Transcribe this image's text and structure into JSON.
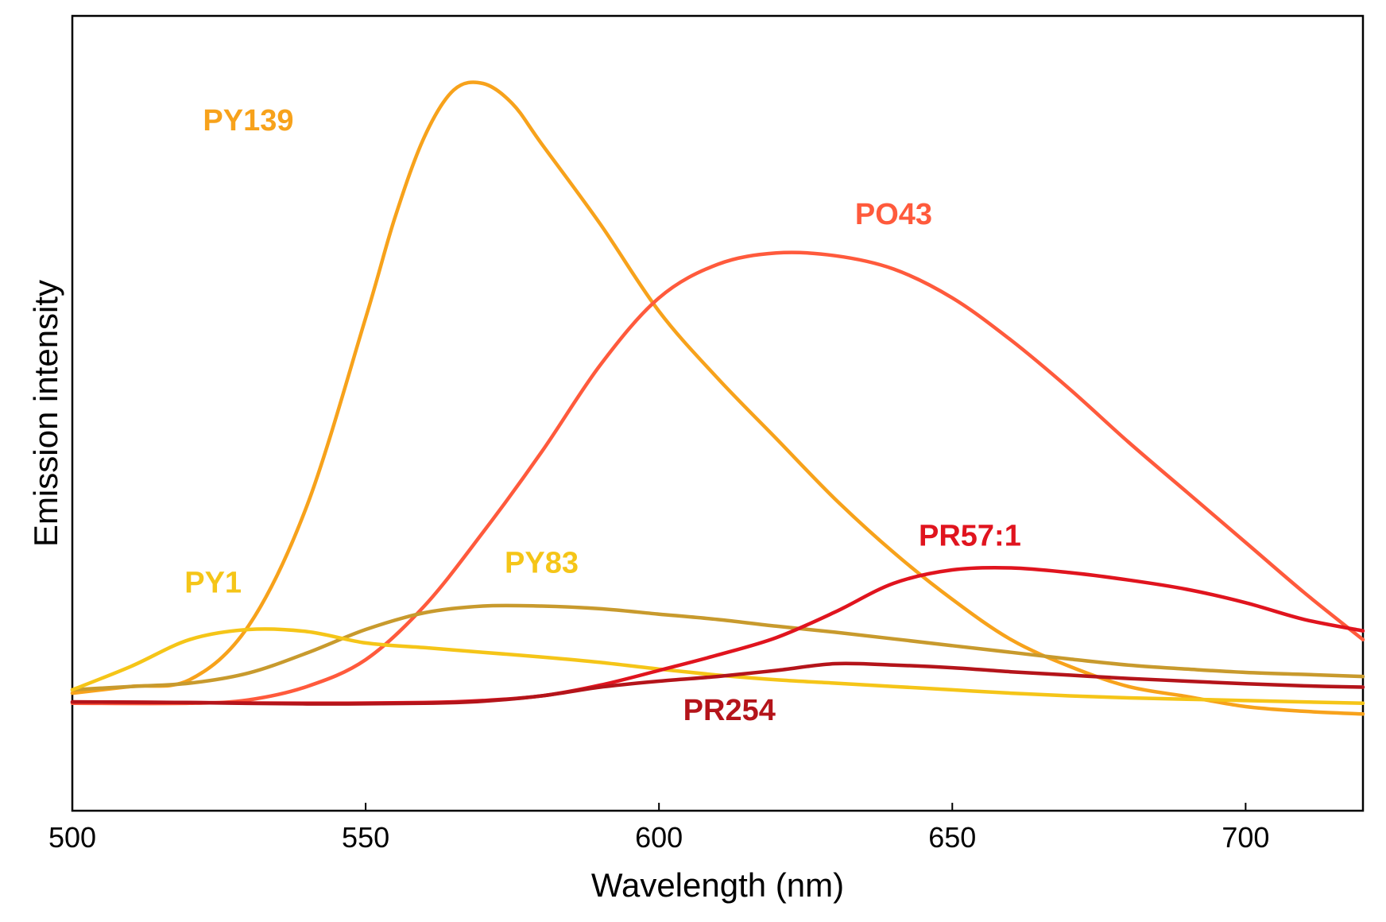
{
  "chart_data": {
    "type": "line",
    "title": "",
    "xlabel": "Wavelength (nm)",
    "ylabel": "Emission intensity",
    "xlim": [
      500,
      720
    ],
    "ylim": [
      0,
      100
    ],
    "xticks": [
      500,
      550,
      600,
      650,
      700
    ],
    "yticks": [],
    "grid": false,
    "legend": "none",
    "series": [
      {
        "name": "PY139",
        "color": "#f7a21b",
        "x": [
          500,
          510,
          520,
          530,
          540,
          550,
          555,
          560,
          565,
          570,
          575,
          580,
          590,
          600,
          610,
          620,
          630,
          640,
          650,
          660,
          670,
          680,
          690,
          700,
          710,
          720
        ],
        "y": [
          9,
          10,
          11,
          19,
          37,
          65,
          80,
          92,
          99,
          100,
          97,
          91,
          79,
          66,
          56,
          47,
          38,
          30,
          23,
          17,
          13,
          10,
          8.5,
          7,
          6.3,
          5.9
        ]
      },
      {
        "name": "PO43",
        "color": "#ff5a3c",
        "x": [
          500,
          520,
          530,
          540,
          550,
          560,
          570,
          580,
          590,
          600,
          610,
          620,
          630,
          640,
          650,
          660,
          670,
          680,
          690,
          700,
          710,
          720
        ],
        "y": [
          7.5,
          7.5,
          8,
          10,
          14,
          22,
          33,
          45,
          58,
          68,
          73,
          74.7,
          74.3,
          72.3,
          68,
          61.7,
          54.4,
          46.5,
          39,
          31.5,
          24,
          17
        ]
      },
      {
        "name": "PY83",
        "color": "#c89a2d",
        "x": [
          500,
          510,
          520,
          530,
          540,
          550,
          560,
          570,
          580,
          590,
          600,
          610,
          620,
          630,
          640,
          650,
          660,
          670,
          680,
          690,
          700,
          710,
          720
        ],
        "y": [
          9.5,
          10,
          10.5,
          12,
          15,
          18.5,
          21,
          22,
          22,
          21.6,
          20.8,
          20,
          19,
          18.1,
          17.1,
          16.1,
          15.1,
          14.1,
          13.2,
          12.6,
          12.1,
          11.8,
          11.5
        ]
      },
      {
        "name": "PY1",
        "color": "#f5c518",
        "x": [
          500,
          510,
          520,
          530,
          540,
          550,
          560,
          570,
          580,
          590,
          600,
          610,
          620,
          630,
          640,
          650,
          660,
          670,
          680,
          690,
          700,
          710,
          720
        ],
        "y": [
          9.5,
          13,
          17,
          18.5,
          18.2,
          16.5,
          15.8,
          15.1,
          14.4,
          13.6,
          12.6,
          11.7,
          11,
          10.5,
          10,
          9.5,
          9,
          8.6,
          8.3,
          8.1,
          7.9,
          7.7,
          7.5
        ]
      },
      {
        "name": "PR57:1",
        "color": "#e0141e",
        "x": [
          500,
          520,
          540,
          560,
          570,
          580,
          590,
          600,
          610,
          620,
          630,
          640,
          650,
          660,
          670,
          680,
          690,
          700,
          710,
          720
        ],
        "y": [
          7.7,
          7.6,
          7.5,
          7.6,
          7.9,
          8.6,
          10.2,
          12.4,
          14.7,
          17.3,
          21.1,
          25.4,
          27.4,
          27.7,
          27,
          25.9,
          24.5,
          22.5,
          20,
          18.3
        ]
      },
      {
        "name": "PR254",
        "color": "#b4141a",
        "x": [
          500,
          520,
          540,
          560,
          570,
          580,
          590,
          600,
          610,
          620,
          630,
          640,
          650,
          660,
          670,
          680,
          690,
          700,
          710,
          720
        ],
        "y": [
          7.7,
          7.6,
          7.4,
          7.5,
          7.8,
          8.6,
          9.9,
          10.8,
          11.5,
          12.4,
          13.4,
          13.2,
          12.8,
          12.2,
          11.7,
          11.2,
          10.8,
          10.4,
          10.1,
          9.9
        ]
      }
    ],
    "annotations": [
      {
        "text": "PY139",
        "color": "#f7a21b",
        "x": 530,
        "y": 93
      },
      {
        "text": "PO43",
        "color": "#ff5a3c",
        "x": 640,
        "y": 79
      },
      {
        "text": "PY83",
        "color": "#f5c518",
        "x": 580,
        "y": 27
      },
      {
        "text": "PY1",
        "color": "#f5c518",
        "x": 524,
        "y": 24
      },
      {
        "text": "PR57:1",
        "color": "#e0141e",
        "x": 653,
        "y": 31
      },
      {
        "text": "PR254",
        "color": "#b4141a",
        "x": 612,
        "y": 5
      }
    ]
  }
}
